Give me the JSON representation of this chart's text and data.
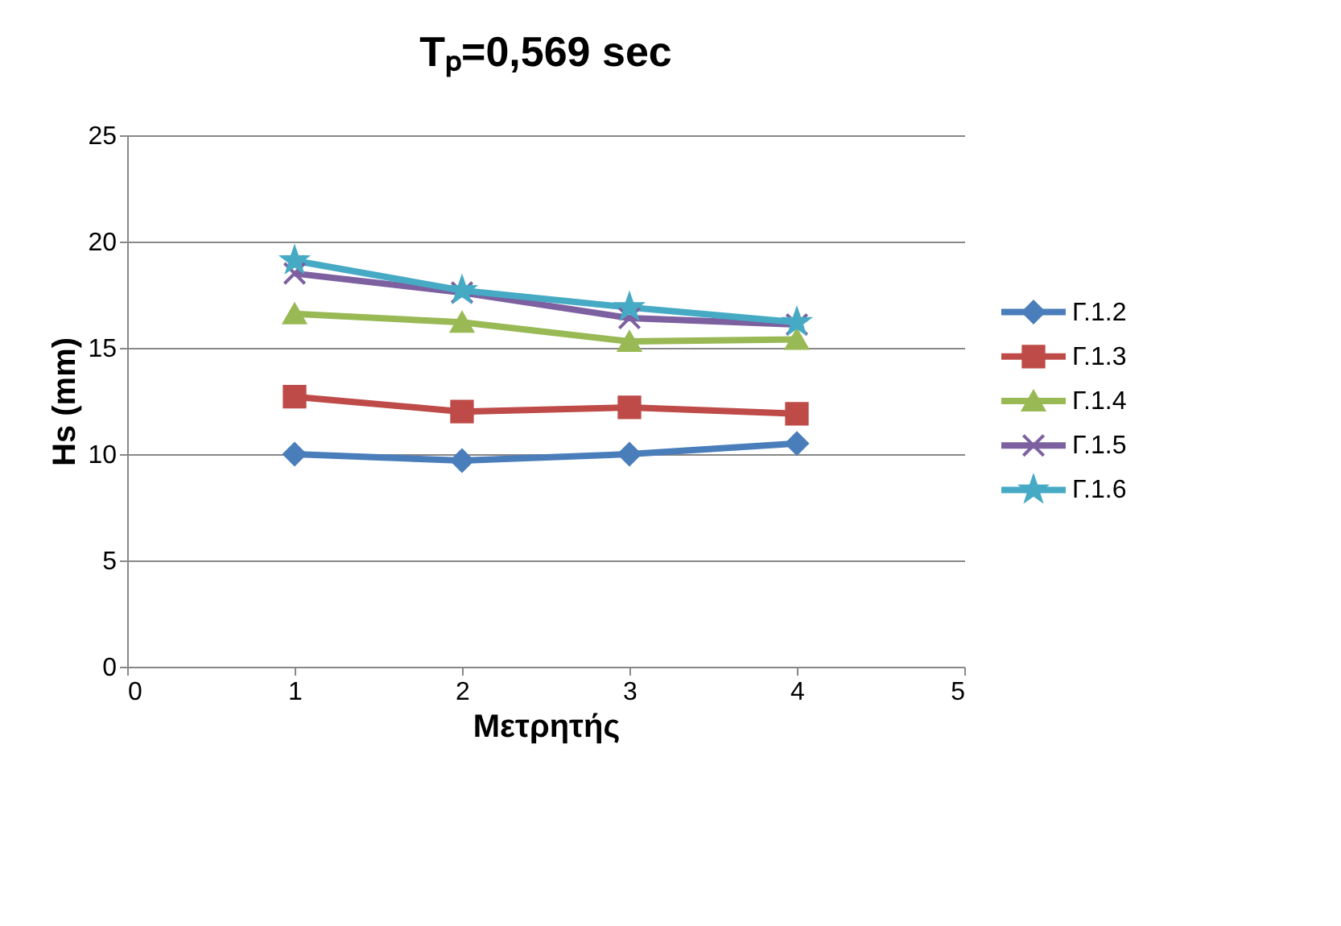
{
  "chart_data": {
    "type": "line",
    "title": "Tₚ=0,569 sec",
    "xlabel": "Μετρητής",
    "ylabel": "Hs (mm)",
    "x": [
      1,
      2,
      3,
      4
    ],
    "xlim": [
      0,
      5
    ],
    "xticks": [
      0,
      1,
      2,
      3,
      4,
      5
    ],
    "ylim": [
      0,
      25
    ],
    "yticks": [
      0,
      5,
      10,
      15,
      20,
      25
    ],
    "grid": "y",
    "legend": "right",
    "line_style": "solid",
    "series": [
      {
        "name": "Γ.1.2",
        "color": "#4a7ebb",
        "marker": "diamond",
        "values": [
          10.0,
          9.7,
          10.0,
          10.5
        ]
      },
      {
        "name": "Γ.1.3",
        "color": "#be4b48",
        "marker": "square",
        "values": [
          12.7,
          12.0,
          12.2,
          11.9
        ]
      },
      {
        "name": "Γ.1.4",
        "color": "#98b954",
        "marker": "triangle",
        "values": [
          16.6,
          16.2,
          15.3,
          15.4
        ]
      },
      {
        "name": "Γ.1.5",
        "color": "#7d60a0",
        "marker": "cross",
        "values": [
          18.5,
          17.6,
          16.4,
          16.1
        ]
      },
      {
        "name": "Γ.1.6",
        "color": "#46aac5",
        "marker": "star",
        "values": [
          19.1,
          17.7,
          16.9,
          16.2
        ]
      }
    ]
  }
}
